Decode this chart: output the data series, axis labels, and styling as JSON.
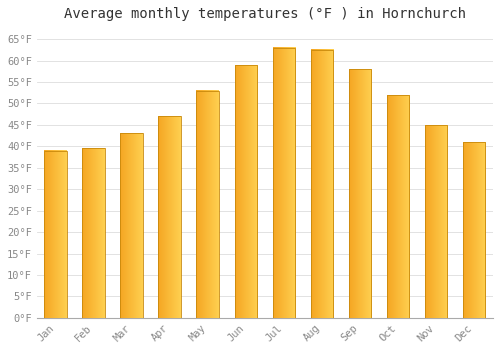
{
  "title": "Average monthly temperatures (°F ) in Hornchurch",
  "months": [
    "Jan",
    "Feb",
    "Mar",
    "Apr",
    "May",
    "Jun",
    "Jul",
    "Aug",
    "Sep",
    "Oct",
    "Nov",
    "Dec"
  ],
  "values": [
    39.0,
    39.5,
    43.0,
    47.0,
    53.0,
    59.0,
    63.0,
    62.5,
    58.0,
    52.0,
    45.0,
    41.0
  ],
  "bar_color_left": "#F5A623",
  "bar_color_right": "#FFD050",
  "bar_edge_color": "#C8880A",
  "background_color": "#FFFFFF",
  "plot_bg_color": "#FFFFFF",
  "grid_color": "#DDDDDD",
  "ylim": [
    0,
    68
  ],
  "yticks": [
    0,
    5,
    10,
    15,
    20,
    25,
    30,
    35,
    40,
    45,
    50,
    55,
    60,
    65
  ],
  "title_fontsize": 10,
  "tick_fontsize": 7.5,
  "tick_color": "#888888",
  "bar_width": 0.6
}
